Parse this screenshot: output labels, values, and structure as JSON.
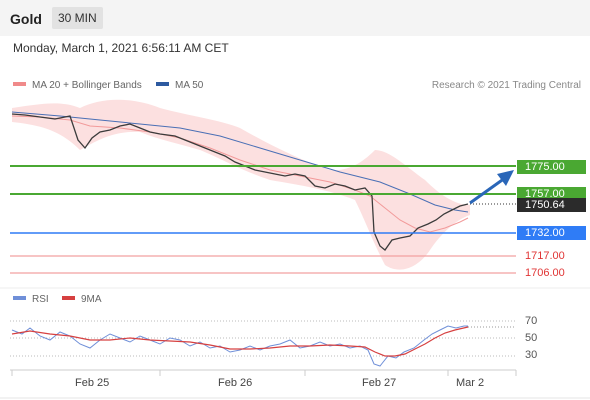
{
  "header": {
    "symbol": "Gold",
    "timeframe": "30 MIN"
  },
  "datetime": "Monday, March 1, 2021 6:56:11 AM CET",
  "legend": {
    "bollinger": "MA 20 + Bollinger Bands",
    "ma50": "MA 50",
    "copyright": "Research © 2021 Trading Central"
  },
  "colors": {
    "resistance": "#4aa832",
    "pivot": "#2f7cf6",
    "support": "#e03535",
    "current": "#2b2b2b",
    "ma50": "#4a6fb5",
    "bollinger_fill": "#fbd5d5"
  },
  "levels": {
    "r2": "1775.00",
    "r1": "1757.00",
    "current": "1750.64",
    "pivot": "1732.00",
    "s1": "1717.00",
    "s2": "1706.00"
  },
  "rsi_panel": {
    "rsi_label": "RSI",
    "ma_label": "9MA",
    "ticks": [
      "70",
      "50",
      "30"
    ]
  },
  "x_axis": [
    "Feb 25",
    "Feb 26",
    "Feb 27",
    "Mar 2"
  ]
}
